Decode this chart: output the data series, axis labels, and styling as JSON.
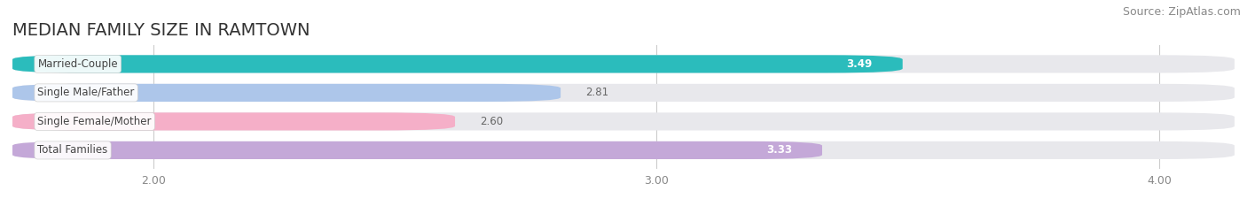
{
  "title": "MEDIAN FAMILY SIZE IN RAMTOWN",
  "source": "Source: ZipAtlas.com",
  "categories": [
    "Married-Couple",
    "Single Male/Father",
    "Single Female/Mother",
    "Total Families"
  ],
  "values": [
    3.49,
    2.81,
    2.6,
    3.33
  ],
  "bar_colors": [
    "#2bbcbc",
    "#adc6ea",
    "#f5afc8",
    "#c4a8d8"
  ],
  "value_colors": [
    "#ffffff",
    "#666666",
    "#666666",
    "#ffffff"
  ],
  "x_min": 1.72,
  "x_max": 4.15,
  "x_ticks": [
    2.0,
    3.0,
    4.0
  ],
  "bar_height": 0.62,
  "background_color": "#ffffff",
  "bar_bg_color": "#e8e8ec",
  "title_fontsize": 14,
  "label_fontsize": 8.5,
  "value_fontsize": 8.5,
  "source_fontsize": 9,
  "rounding": 0.15
}
